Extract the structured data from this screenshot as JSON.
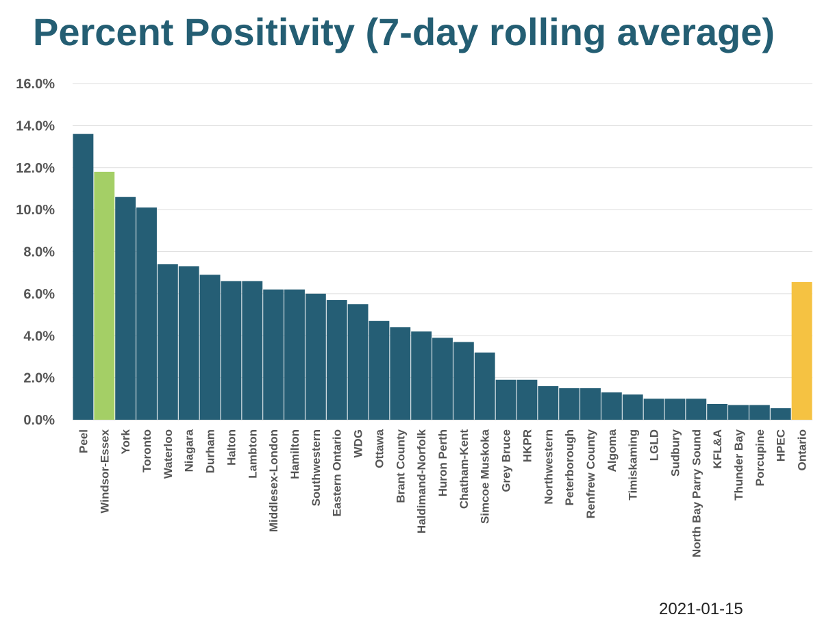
{
  "chart_data": {
    "type": "bar",
    "title": "Percent Positivity (7-day rolling average)",
    "xlabel": "",
    "ylabel": "",
    "ylim": [
      0,
      16
    ],
    "y_ticks": [
      "0.0%",
      "2.0%",
      "4.0%",
      "6.0%",
      "8.0%",
      "10.0%",
      "12.0%",
      "14.0%",
      "16.0%"
    ],
    "grid": true,
    "categories": [
      "Peel",
      "Windsor-Essex",
      "York",
      "Toronto",
      "Waterloo",
      "Niagara",
      "Durham",
      "Halton",
      "Lambton",
      "Middlesex-London",
      "Hamilton",
      "Southwestern",
      "Eastern Ontario",
      "WDG",
      "Ottawa",
      "Brant County",
      "Haldimand-Norfolk",
      "Huron Perth",
      "Chatham-Kent",
      "Simcoe Muskoka",
      "Grey Bruce",
      "HKPR",
      "Northwestern",
      "Peterborough",
      "Renfrew County",
      "Algoma",
      "Timiskaming",
      "LGLD",
      "Sudbury",
      "North Bay Parry Sound",
      "KFL&A",
      "Thunder Bay",
      "Porcupine",
      "HPEC",
      "Ontario"
    ],
    "values": [
      13.6,
      11.8,
      10.6,
      10.1,
      7.4,
      7.3,
      6.9,
      6.6,
      6.6,
      6.2,
      6.2,
      6.0,
      5.7,
      5.5,
      4.7,
      4.4,
      4.2,
      3.9,
      3.7,
      3.2,
      1.9,
      1.9,
      1.6,
      1.5,
      1.5,
      1.3,
      1.2,
      1.0,
      1.0,
      1.0,
      0.75,
      0.7,
      0.7,
      0.55,
      6.55
    ],
    "colors": [
      "#255e75",
      "#a4cf66",
      "#255e75",
      "#255e75",
      "#255e75",
      "#255e75",
      "#255e75",
      "#255e75",
      "#255e75",
      "#255e75",
      "#255e75",
      "#255e75",
      "#255e75",
      "#255e75",
      "#255e75",
      "#255e75",
      "#255e75",
      "#255e75",
      "#255e75",
      "#255e75",
      "#255e75",
      "#255e75",
      "#255e75",
      "#255e75",
      "#255e75",
      "#255e75",
      "#255e75",
      "#255e75",
      "#255e75",
      "#255e75",
      "#255e75",
      "#255e75",
      "#255e75",
      "#255e75",
      "#f5c242"
    ],
    "date_label": "2021-01-15"
  }
}
